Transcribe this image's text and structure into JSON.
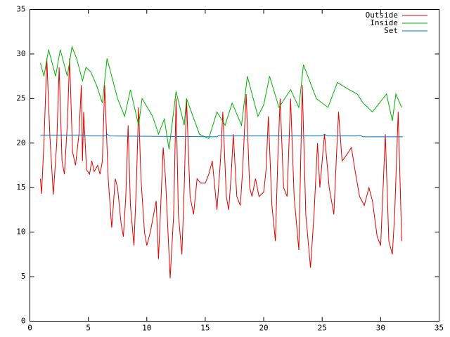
{
  "chart_data": {
    "type": "line",
    "xlim": [
      0,
      35
    ],
    "ylim": [
      0,
      35
    ],
    "xticks": [
      0,
      5,
      10,
      15,
      20,
      25,
      30,
      35
    ],
    "yticks": [
      0,
      5,
      10,
      15,
      20,
      25,
      30,
      35
    ],
    "legend": "upper right",
    "series": [
      {
        "name": "Outside",
        "color": "#e00000",
        "x": [
          0.9,
          1.0,
          1.2,
          1.45,
          1.7,
          2.0,
          2.3,
          2.5,
          2.75,
          2.95,
          3.2,
          3.4,
          3.65,
          3.9,
          4.2,
          4.4,
          4.5,
          4.6,
          4.85,
          5.1,
          5.3,
          5.5,
          5.8,
          6.0,
          6.2,
          6.4,
          6.7,
          7.0,
          7.3,
          7.5,
          7.8,
          8.0,
          8.2,
          8.4,
          8.6,
          8.9,
          9.1,
          9.3,
          9.5,
          9.8,
          10.0,
          10.3,
          10.8,
          11.0,
          11.4,
          11.6,
          12.0,
          12.3,
          12.5,
          12.7,
          13.0,
          13.2,
          13.4,
          13.7,
          14.0,
          14.3,
          14.6,
          15.0,
          15.3,
          15.6,
          16.0,
          16.3,
          16.5,
          16.8,
          17.0,
          17.2,
          17.4,
          17.7,
          18.0,
          18.2,
          18.5,
          18.8,
          19.0,
          19.3,
          19.6,
          20.0,
          20.2,
          20.4,
          20.7,
          21.0,
          21.2,
          21.4,
          21.7,
          22.0,
          22.3,
          22.6,
          23.0,
          23.3,
          23.6,
          24.0,
          24.3,
          24.6,
          24.8,
          25.2,
          25.6,
          26.0,
          26.2,
          26.4,
          26.7,
          27.0,
          27.5,
          27.8,
          28.2,
          28.6,
          29.0,
          29.3,
          29.7,
          30.0,
          30.4,
          30.7,
          31.0,
          31.2,
          31.5,
          31.8
        ],
        "values": [
          16,
          14.3,
          20,
          29.5,
          21,
          14.2,
          20,
          28.5,
          18,
          16.5,
          22,
          29.5,
          19,
          17.5,
          21,
          26.5,
          18,
          23.5,
          17,
          16.5,
          18,
          16.8,
          17.5,
          16.5,
          18,
          26.5,
          16,
          10.5,
          16,
          15,
          11,
          9.5,
          14,
          22,
          13,
          8.5,
          15,
          24,
          16,
          10,
          8.5,
          10,
          13.5,
          7,
          19.5,
          16,
          4.8,
          12,
          25,
          12,
          7.5,
          15,
          25,
          14,
          12,
          16,
          15.5,
          15.5,
          16.5,
          18,
          12.5,
          18,
          23.5,
          14,
          12.5,
          16,
          21,
          14,
          13,
          17,
          25.5,
          15,
          14,
          16,
          14,
          14.5,
          17,
          23,
          13,
          9,
          18,
          25,
          15,
          14,
          25,
          14,
          8,
          26.5,
          12,
          6,
          12,
          20,
          15,
          21,
          15,
          12,
          18,
          23.5,
          18,
          18.5,
          19.5,
          17,
          14,
          13,
          15,
          13.5,
          9.5,
          8.5,
          21,
          9,
          7.5,
          12,
          23.5,
          9
        ]
      },
      {
        "name": "Inside",
        "color": "#00b000",
        "x": [
          0.9,
          1.2,
          1.6,
          2.2,
          2.6,
          3.2,
          3.6,
          4.0,
          4.5,
          4.8,
          5.2,
          5.7,
          6.2,
          6.6,
          7.5,
          8.1,
          8.6,
          9.3,
          9.6,
          10.5,
          11.0,
          11.5,
          11.9,
          12.5,
          13.2,
          13.4,
          14.5,
          15.3,
          16.0,
          16.7,
          17.3,
          18.1,
          18.6,
          19.5,
          20.0,
          20.5,
          21.3,
          22.3,
          23.0,
          23.4,
          24.5,
          25.5,
          26.3,
          27.3,
          28.0,
          28.5,
          29.3,
          30.5,
          31.0,
          31.3,
          31.8
        ],
        "values": [
          29,
          27.5,
          30.5,
          27.5,
          30.5,
          27.5,
          30.8,
          29.5,
          27,
          28.5,
          28,
          26.5,
          24.5,
          29.5,
          25,
          23,
          26,
          22,
          25,
          23,
          21,
          22.7,
          19.3,
          25.8,
          22,
          25,
          21,
          20.5,
          23.5,
          22,
          24.5,
          22,
          27.5,
          23,
          24.3,
          27.5,
          24,
          26,
          24,
          28.8,
          25,
          24,
          26.8,
          26,
          25.5,
          24.5,
          23.5,
          25.5,
          22.5,
          25.5,
          24
        ]
      },
      {
        "name": "Set",
        "color": "#0070d0",
        "x": [
          0.9,
          4.5,
          5.0,
          6.5,
          6.6,
          6.8,
          16.0,
          16.2,
          16.5,
          25.0,
          25.2,
          25.4,
          28.0,
          28.2,
          28.5,
          31.9
        ],
        "values": [
          20.9,
          20.9,
          20.8,
          20.8,
          21.0,
          20.8,
          20.7,
          20.9,
          20.8,
          20.8,
          21.0,
          20.8,
          20.8,
          20.9,
          20.7,
          20.7
        ]
      }
    ]
  }
}
